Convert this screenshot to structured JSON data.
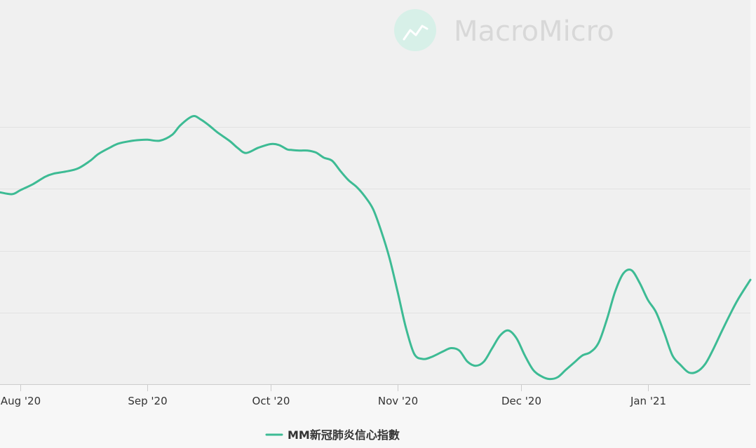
{
  "watermark": {
    "text": "MacroMicro",
    "icon": "chart-logo-icon",
    "color": "#d8d8d8",
    "icon_color": "#d7f0e8"
  },
  "colors": {
    "plot_background": "#f0f0f0",
    "page_background": "#f7f7f7",
    "gridline": "#e2e2e2",
    "axis": "#cccccc",
    "series": "#3dbb94"
  },
  "chart_data": {
    "type": "line",
    "title": "",
    "xlabel": "",
    "ylabel": "",
    "x_axis": {
      "type": "date",
      "range": [
        "2020-07-27",
        "2021-01-26"
      ],
      "ticks": [
        {
          "date": "2020-08-01",
          "label": "Aug '20"
        },
        {
          "date": "2020-09-01",
          "label": "Sep '20"
        },
        {
          "date": "2020-10-01",
          "label": "Oct '20"
        },
        {
          "date": "2020-11-01",
          "label": "Nov '20"
        },
        {
          "date": "2020-12-01",
          "label": "Dec '20"
        },
        {
          "date": "2021-01-01",
          "label": "Jan '21"
        }
      ]
    },
    "y_axis": {
      "range": [
        0,
        100
      ],
      "tick_labels_shown": false,
      "gridlines": [
        20,
        40,
        60,
        80
      ]
    },
    "grid": true,
    "legend": {
      "position": "bottom-center"
    },
    "series": [
      {
        "name": "MM新冠肺炎信心指數",
        "color": "#3dbb94",
        "x": [
          "2020-07-27",
          "2020-07-30",
          "2020-08-01",
          "2020-08-04",
          "2020-08-07",
          "2020-08-09",
          "2020-08-12",
          "2020-08-15",
          "2020-08-18",
          "2020-08-20",
          "2020-08-23",
          "2020-08-25",
          "2020-08-28",
          "2020-08-30",
          "2020-09-01",
          "2020-09-04",
          "2020-09-07",
          "2020-09-09",
          "2020-09-12",
          "2020-09-14",
          "2020-09-16",
          "2020-09-18",
          "2020-09-21",
          "2020-09-23",
          "2020-09-25",
          "2020-09-28",
          "2020-10-01",
          "2020-10-03",
          "2020-10-05",
          "2020-10-06",
          "2020-10-08",
          "2020-10-10",
          "2020-10-12",
          "2020-10-14",
          "2020-10-16",
          "2020-10-18",
          "2020-10-20",
          "2020-10-22",
          "2020-10-24",
          "2020-10-26",
          "2020-10-28",
          "2020-10-30",
          "2020-11-01",
          "2020-11-03",
          "2020-11-05",
          "2020-11-07",
          "2020-11-09",
          "2020-11-12",
          "2020-11-14",
          "2020-11-16",
          "2020-11-18",
          "2020-11-20",
          "2020-11-22",
          "2020-11-24",
          "2020-11-26",
          "2020-11-28",
          "2020-11-30",
          "2020-12-02",
          "2020-12-04",
          "2020-12-06",
          "2020-12-08",
          "2020-12-10",
          "2020-12-12",
          "2020-12-14",
          "2020-12-16",
          "2020-12-18",
          "2020-12-20",
          "2020-12-22",
          "2020-12-24",
          "2020-12-26",
          "2020-12-28",
          "2020-12-30",
          "2021-01-01",
          "2021-01-03",
          "2021-01-05",
          "2021-01-07",
          "2021-01-09",
          "2021-01-11",
          "2021-01-13",
          "2021-01-15",
          "2021-01-17",
          "2021-01-19",
          "2021-01-21",
          "2021-01-23",
          "2021-01-26"
        ],
        "y": [
          58.9,
          58.3,
          59.6,
          61.5,
          63.9,
          64.9,
          65.6,
          66.6,
          69.1,
          71.3,
          73.5,
          74.7,
          75.5,
          75.8,
          75.9,
          75.6,
          77.5,
          80.6,
          83.5,
          82.4,
          80.5,
          78.3,
          75.5,
          73.2,
          71.6,
          73.3,
          74.5,
          74.2,
          72.8,
          72.6,
          72.4,
          72.4,
          71.8,
          70.1,
          69.1,
          65.8,
          62.8,
          60.6,
          57.5,
          53.4,
          46.2,
          37.5,
          26.5,
          15.0,
          6.7,
          5.0,
          5.5,
          7.4,
          8.5,
          7.7,
          4.1,
          2.8,
          4.1,
          8.4,
          12.6,
          14.2,
          11.6,
          6.1,
          1.5,
          -0.6,
          -1.5,
          -0.9,
          1.5,
          3.8,
          6.1,
          7.2,
          10.3,
          17.8,
          26.7,
          32.6,
          33.7,
          29.6,
          24.1,
          20.1,
          13.4,
          6.1,
          3.0,
          0.6,
          0.9,
          3.4,
          8.3,
          13.9,
          19.3,
          24.3,
          30.6
        ]
      }
    ]
  }
}
